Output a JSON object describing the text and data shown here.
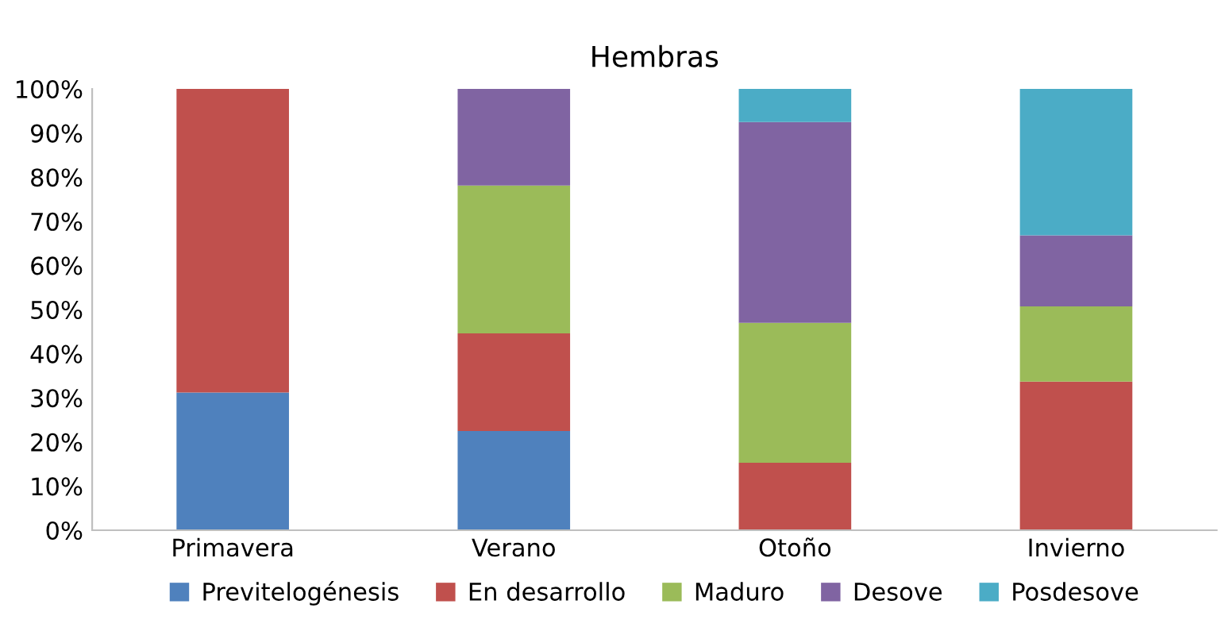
{
  "chart_data": {
    "type": "bar",
    "title": "Hembras",
    "stacked": true,
    "categories": [
      "Primavera",
      "Verano",
      "Otoño",
      "Invierno"
    ],
    "series": [
      {
        "name": "Previtelogénesis",
        "color": "#4f81bd",
        "values": [
          31.2,
          22.5,
          0,
          0
        ]
      },
      {
        "name": "En desarrollo",
        "color": "#c0504d",
        "values": [
          68.8,
          22.1,
          15.3,
          33.7
        ]
      },
      {
        "name": "Maduro",
        "color": "#9bbb59",
        "values": [
          0,
          33.5,
          31.7,
          17.0
        ]
      },
      {
        "name": "Desove",
        "color": "#8064a2",
        "values": [
          0,
          21.9,
          45.5,
          16.1
        ]
      },
      {
        "name": "Posdesove",
        "color": "#4bacc6",
        "values": [
          0,
          0,
          7.5,
          33.2
        ]
      }
    ],
    "ylim": [
      0,
      100
    ],
    "yticks": [
      {
        "value": 0,
        "label": "0%"
      },
      {
        "value": 10,
        "label": "10%"
      },
      {
        "value": 20,
        "label": "20%"
      },
      {
        "value": 30,
        "label": "30%"
      },
      {
        "value": 40,
        "label": "40%"
      },
      {
        "value": 50,
        "label": "50%"
      },
      {
        "value": 60,
        "label": "60%"
      },
      {
        "value": 70,
        "label": "70%"
      },
      {
        "value": 80,
        "label": "80%"
      },
      {
        "value": 90,
        "label": "90%"
      },
      {
        "value": 100,
        "label": "100%"
      }
    ],
    "legend": "bottom",
    "grid": false
  }
}
